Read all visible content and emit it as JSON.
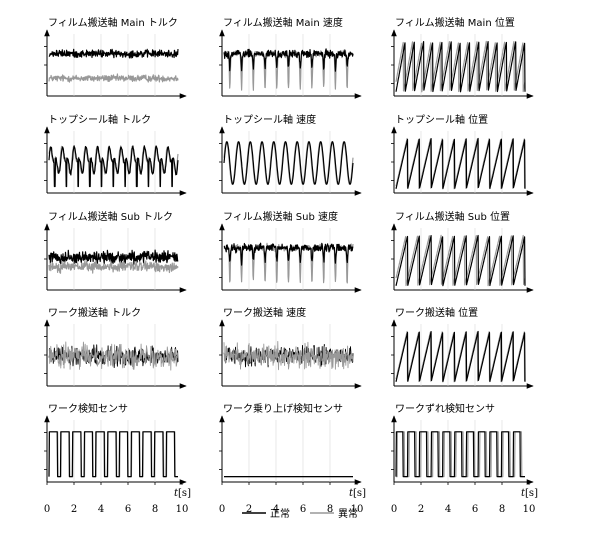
{
  "chart_data": {
    "type": "line",
    "grid": "3x5 small multiples",
    "legend": {
      "placement": "bottom-center",
      "entries": [
        {
          "name": "正常",
          "color": "#000000"
        },
        {
          "name": "異常",
          "color": "#999999"
        }
      ]
    },
    "x_axis": {
      "label_var": "t",
      "label_unit": "[s]",
      "range": [
        0,
        10
      ],
      "ticks": [
        "0",
        "2",
        "4",
        "6",
        "8",
        "10"
      ]
    },
    "panels": [
      {
        "title": "フィルム搬送軸 Main トルク",
        "kind": "torque_noise_offset"
      },
      {
        "title": "フィルム搬送軸 Main 速度",
        "kind": "speed_dips"
      },
      {
        "title": "フィルム搬送軸 Main 位置",
        "kind": "sawtooth",
        "cycles": 14,
        "abnormal_shift": 0.2
      },
      {
        "title": "トップシール軸 トルク",
        "kind": "torque_periodic",
        "cycles": 11
      },
      {
        "title": "トップシール軸 速度",
        "kind": "sine",
        "cycles": 11
      },
      {
        "title": "トップシール軸 位置",
        "kind": "sawtooth",
        "cycles": 11,
        "abnormal_shift": 0.05
      },
      {
        "title": "フィルム搬送軸 Sub トルク",
        "kind": "torque_noise_overlap"
      },
      {
        "title": "フィルム搬送軸 Sub 速度",
        "kind": "speed_dips"
      },
      {
        "title": "フィルム搬送軸 Sub 位置",
        "kind": "sawtooth",
        "cycles": 11,
        "abnormal_shift": 0.15
      },
      {
        "title": "ワーク搬送軸 トルク",
        "kind": "dense_noise"
      },
      {
        "title": "ワーク搬送軸 速度",
        "kind": "dense_noise"
      },
      {
        "title": "ワーク搬送軸 位置",
        "kind": "sawtooth",
        "cycles": 11,
        "abnormal_shift": 0.05
      },
      {
        "title": "ワーク検知センサ",
        "kind": "pulses",
        "cycles": 11
      },
      {
        "title": "ワーク乗り上げ検知センサ",
        "kind": "flat"
      },
      {
        "title": "ワークずれ検知センサ",
        "kind": "pulses_dense",
        "cycles": 11
      }
    ]
  }
}
